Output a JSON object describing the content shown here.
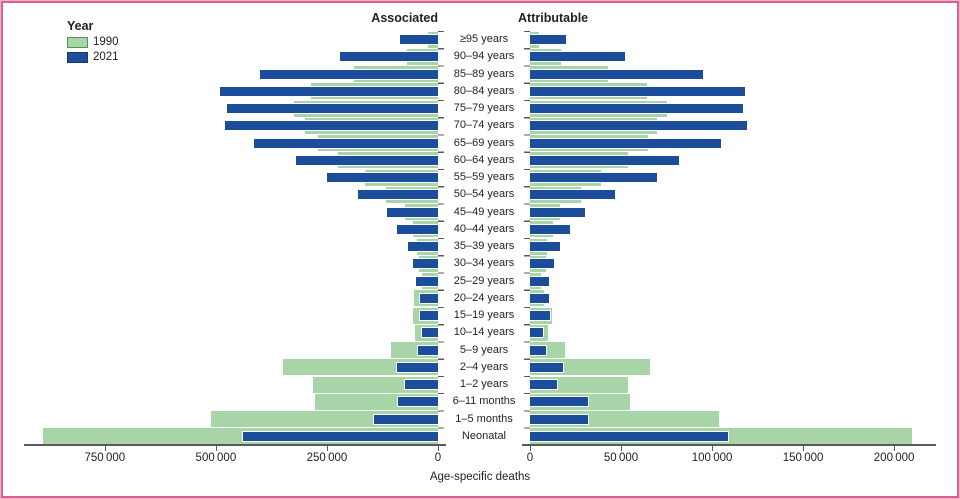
{
  "figure": {
    "headers": {
      "left": "Associated",
      "right": "Attributable"
    },
    "legend": {
      "title": "Year",
      "items": [
        {
          "label": "1990",
          "color": "#a8d5a8",
          "border": "#4f9652"
        },
        {
          "label": "2021",
          "color": "#1c4d9b",
          "border": "#16396f"
        }
      ]
    },
    "xlabel": "Age-specific deaths",
    "frame_border_color": "#d9608f",
    "axis_color": "#58595b"
  },
  "chart_data": {
    "type": "bar",
    "subtype": "diverging horizontal overlaid bars (butterfly chart), ages top-to-bottom oldest to youngest",
    "title": "",
    "xlabel": "Age-specific deaths",
    "ylabel": "",
    "legend_position": "top-left",
    "grid": false,
    "categories": [
      "≥95 years",
      "90–94 years",
      "85–89 years",
      "80–84 years",
      "75–79 years",
      "70–74 years",
      "65–69 years",
      "60–64 years",
      "55–59 years",
      "50–54 years",
      "45–49 years",
      "40–44 years",
      "35–39 years",
      "30–34 years",
      "25–29 years",
      "20–24 years",
      "15–19 years",
      "10–14 years",
      "5–9 years",
      "2–4 years",
      "1–2 years",
      "6–11 months",
      "1–5 months",
      "Neonatal"
    ],
    "panels": [
      {
        "name": "Associated",
        "side": "left",
        "axis_max": 932000,
        "ticks": [
          {
            "value": 750000,
            "label": "750 000"
          },
          {
            "value": 500000,
            "label": "500 000"
          },
          {
            "value": 250000,
            "label": "250 000"
          },
          {
            "value": 0,
            "label": "0"
          }
        ],
        "series": [
          {
            "name": "1990",
            "values": [
              22000,
              70000,
              190000,
              285000,
              325000,
              300000,
              270000,
              225000,
              165000,
              118000,
              75000,
              57000,
              48000,
              43000,
              35000,
              54000,
              57000,
              52000,
              105000,
              348000,
              282000,
              277000,
              511000,
              889000
            ]
          },
          {
            "name": "2021",
            "values": [
              85000,
              220000,
              400000,
              490000,
              475000,
              480000,
              415000,
              320000,
              250000,
              180000,
              115000,
              92000,
              68000,
              57000,
              50000,
              40000,
              40000,
              35000,
              45000,
              93000,
              75000,
              91000,
              145000,
              440000
            ]
          }
        ]
      },
      {
        "name": "Attributable",
        "side": "right",
        "axis_max": 223000,
        "ticks": [
          {
            "value": 0,
            "label": "0"
          },
          {
            "value": 50000,
            "label": "50 000"
          },
          {
            "value": 100000,
            "label": "100 000"
          },
          {
            "value": 150000,
            "label": "150 000"
          },
          {
            "value": 200000,
            "label": "200 000"
          }
        ],
        "series": [
          {
            "name": "1990",
            "values": [
              5000,
              17000,
              43000,
              64000,
              75000,
              70000,
              65000,
              54000,
              39000,
              28000,
              16500,
              12500,
              9500,
              9000,
              6000,
              7500,
              12000,
              10000,
              19000,
              66000,
              54000,
              55000,
              104000,
              210000
            ]
          },
          {
            "name": "2021",
            "values": [
              20000,
              52000,
              95000,
              118000,
              117000,
              119000,
              105000,
              82000,
              70000,
              46500,
              30000,
              22000,
              16500,
              13000,
              10500,
              10500,
              11000,
              7000,
              9000,
              18000,
              15000,
              32000,
              32000,
              109000
            ]
          }
        ]
      }
    ]
  }
}
